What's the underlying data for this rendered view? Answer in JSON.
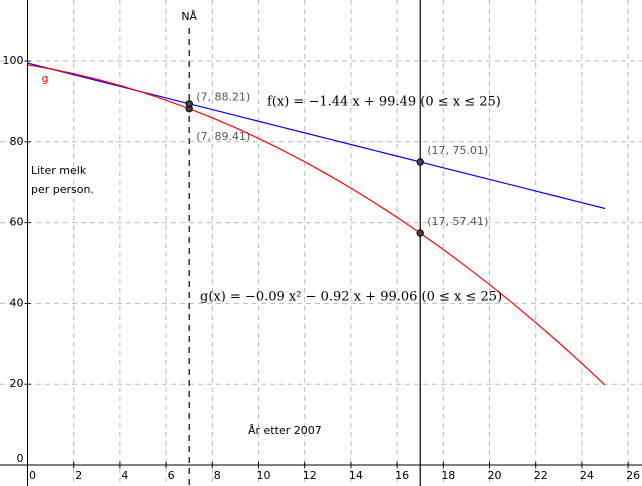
{
  "chart_data": {
    "type": "line",
    "x": [
      0,
      1,
      2,
      3,
      4,
      5,
      6,
      7,
      8,
      9,
      10,
      11,
      12,
      13,
      14,
      15,
      16,
      17,
      18,
      19,
      20,
      21,
      22,
      23,
      24,
      25
    ],
    "series": [
      {
        "name": "f",
        "color": "#0000ff",
        "values": [
          99.49,
          98.05,
          96.61,
          95.17,
          93.73,
          92.29,
          90.85,
          89.41,
          87.97,
          86.53,
          85.09,
          83.65,
          82.21,
          80.77,
          79.33,
          77.89,
          76.45,
          75.01,
          73.57,
          72.13,
          70.69,
          69.25,
          67.81,
          66.37,
          64.93,
          63.49
        ]
      },
      {
        "name": "g",
        "color": "#ff0000",
        "values": [
          99.06,
          98.05,
          96.86,
          95.49,
          93.94,
          92.21,
          90.3,
          88.21,
          85.94,
          83.49,
          80.86,
          78.05,
          75.06,
          71.89,
          68.54,
          65.01,
          61.3,
          57.41,
          53.34,
          49.09,
          44.66,
          40.05,
          35.26,
          30.29,
          25.14,
          19.81
        ]
      }
    ],
    "points": [
      {
        "x": 7,
        "y": 88.21,
        "label": "(7, 88.21)"
      },
      {
        "x": 7,
        "y": 89.41,
        "label": "(7, 89.41)"
      },
      {
        "x": 17,
        "y": 75.01,
        "label": "(17, 75.01)"
      },
      {
        "x": 17,
        "y": 57.41,
        "label": "(17, 57.41)"
      }
    ],
    "vlines": [
      {
        "x": 7,
        "dashed": true,
        "label": "NÅ"
      },
      {
        "x": 17,
        "dashed": false
      }
    ],
    "f_label": "f(x) = −1.44 x + 99.49    (0 ≤ x ≤ 25)",
    "g_label": "g(x) = −0.09 x² − 0.92 x + 99.06    (0 ≤ x ≤ 25)",
    "y_label": [
      "Liter melk",
      "per person."
    ],
    "x_label": "År etter 2007",
    "xlim": [
      -1.19,
      26.6
    ],
    "ylim": [
      -5.2,
      115.1
    ],
    "xticks": [
      0,
      2,
      4,
      6,
      8,
      10,
      12,
      14,
      16,
      18,
      20,
      22,
      24,
      26
    ],
    "yticks": [
      0,
      20,
      40,
      60,
      80,
      100
    ],
    "grid": true
  }
}
